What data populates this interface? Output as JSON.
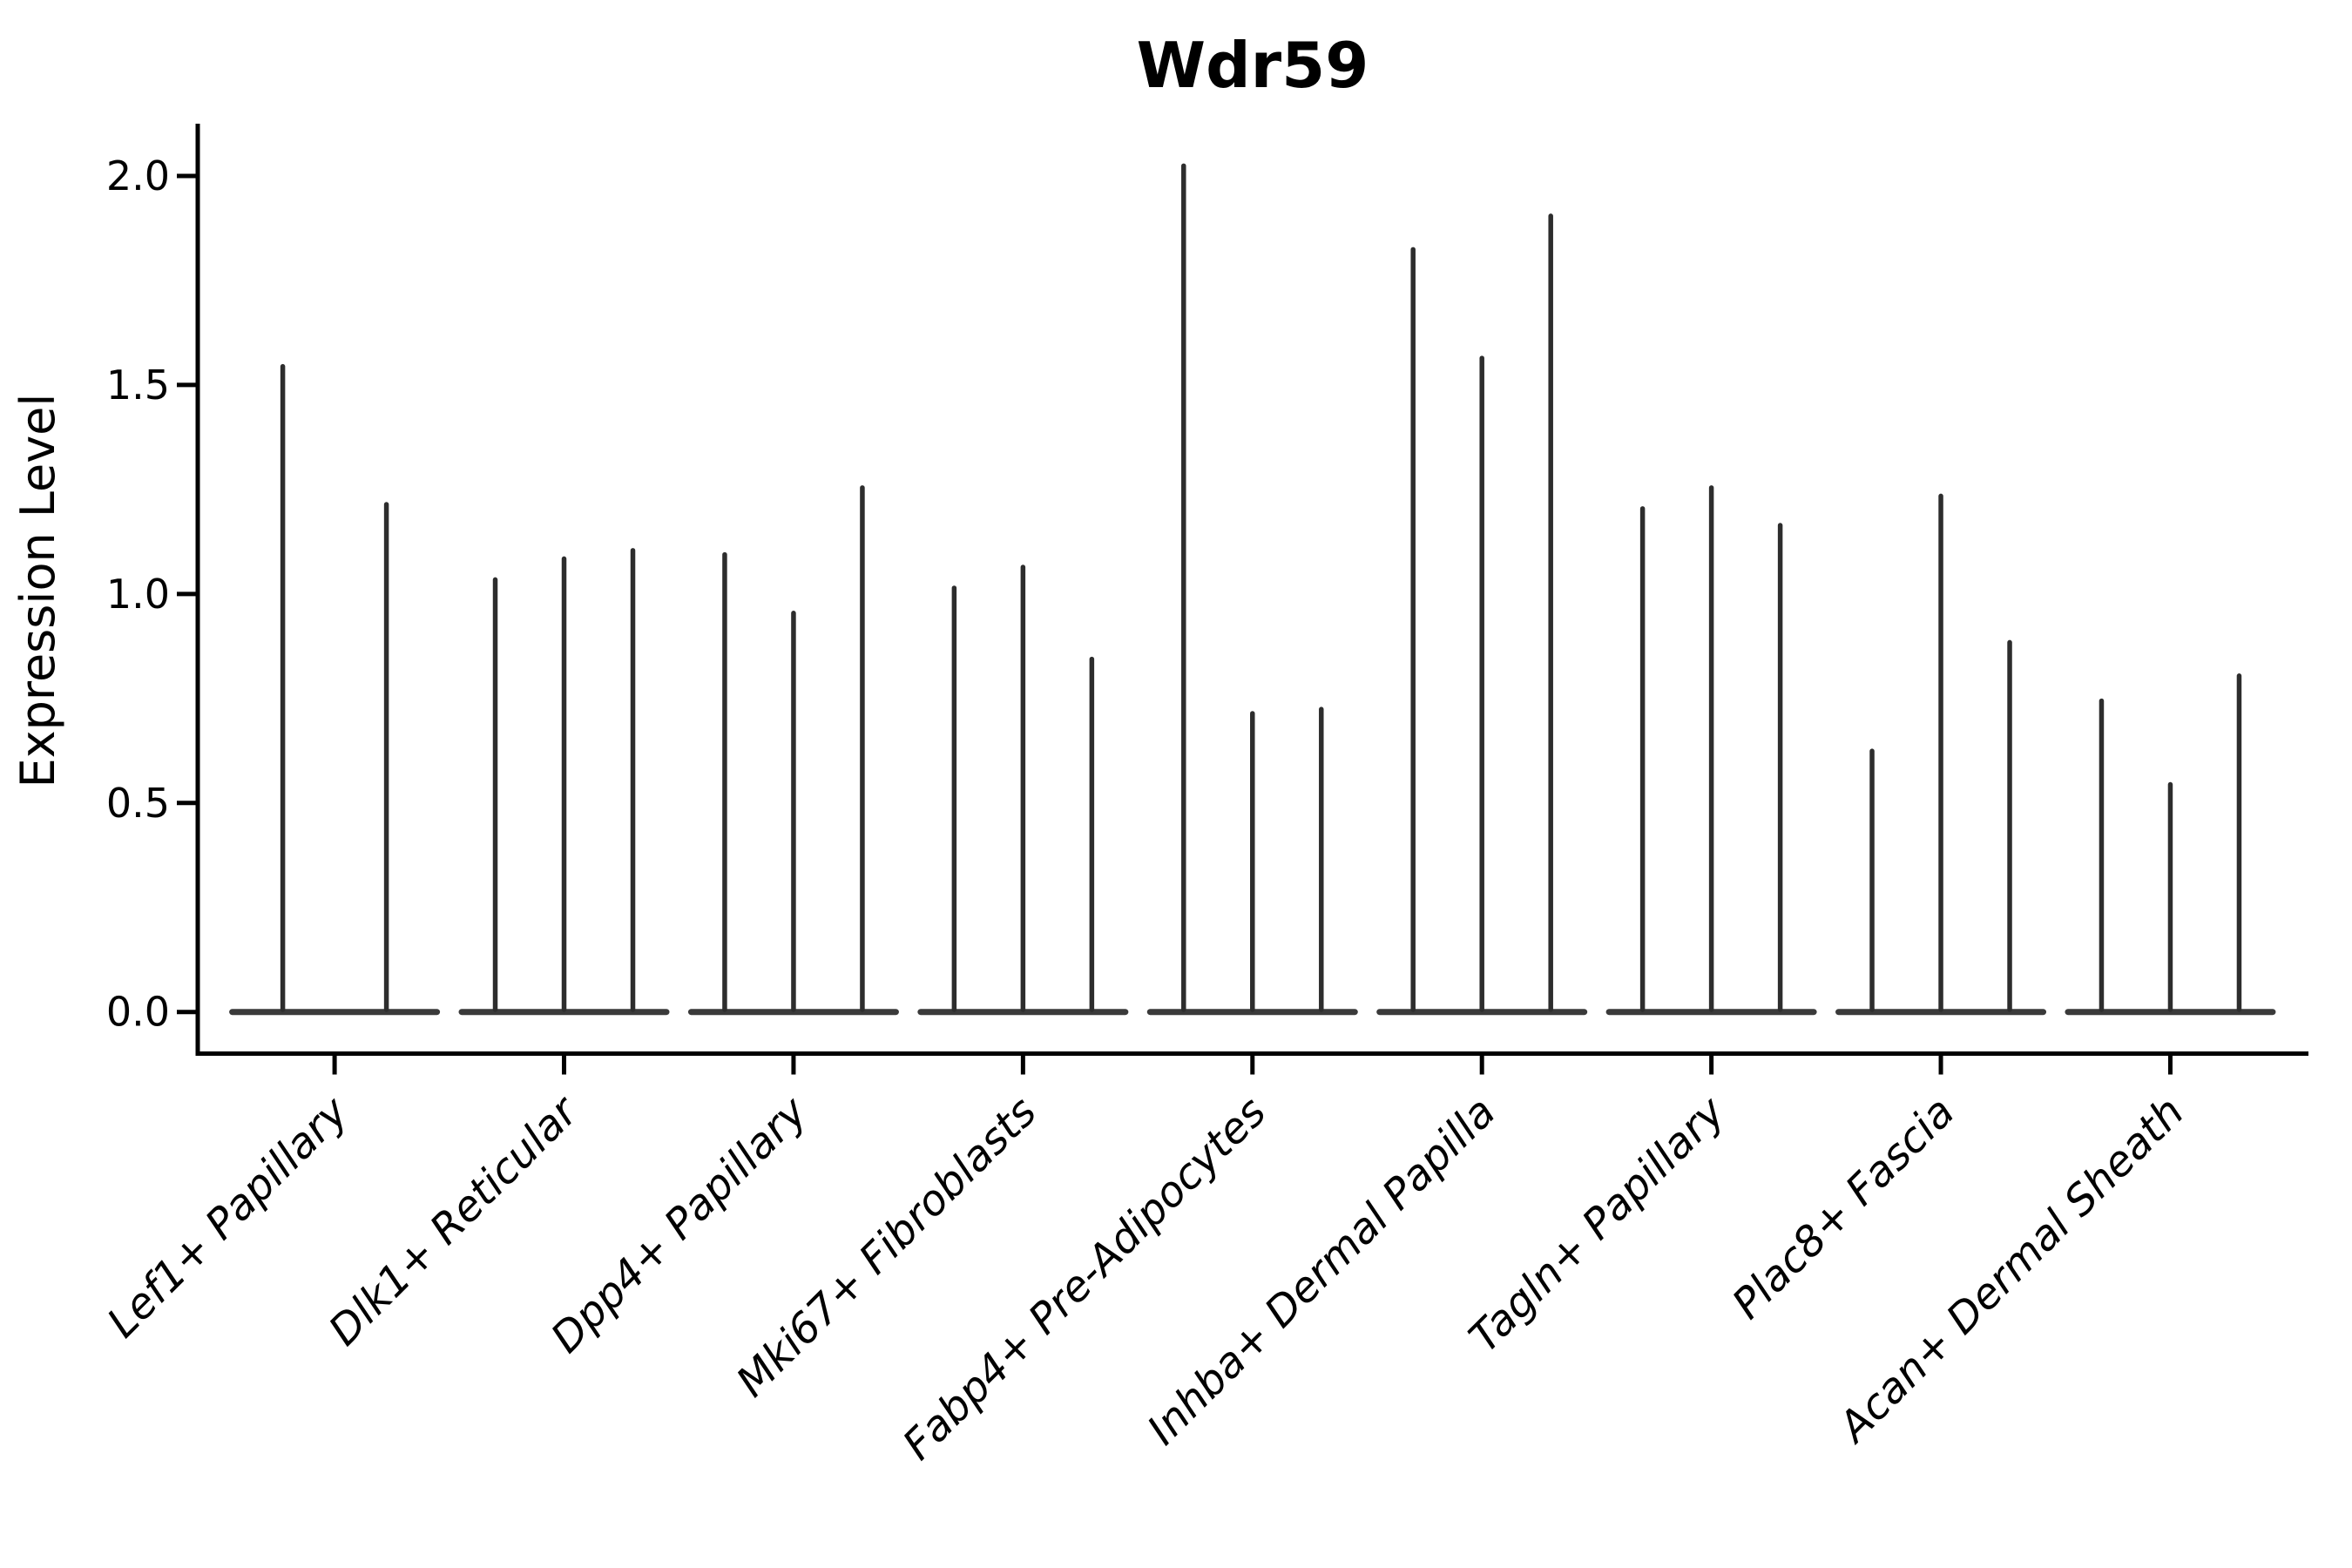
{
  "title": "Wdr59",
  "y_axis": {
    "label": "Expression Level",
    "tick_labels": [
      "0.0",
      "0.5",
      "1.0",
      "1.5",
      "2.0"
    ]
  },
  "chart_data": {
    "type": "violin",
    "title": "Wdr59",
    "xlabel": "",
    "ylabel": "Expression Level",
    "ylim": [
      -0.1,
      2.125
    ],
    "yticks": [
      0.0,
      0.5,
      1.0,
      1.5,
      2.0
    ],
    "grid": false,
    "legend": "none",
    "style": "sparse single-cell expression violins: each cluster has a wide flat density at 0 and thin vertical density spikes reaching the maximum expression of each sub-violin",
    "categories": [
      "Lef1+ Papillary",
      "Dlk1+ Reticular",
      "Dpp4+ Papillary",
      "Mki67+ Fibroblasts",
      "Fabp4+ Pre-Adipocytes",
      "Inhba+ Dermal Papilla",
      "Tagln+ Papillary",
      "Plac8+ Fascia",
      "Acan+ Dermal Sheath"
    ],
    "series": [
      {
        "category": "Lef1+ Papillary",
        "spike_max_expression": [
          1.55,
          1.22
        ]
      },
      {
        "category": "Dlk1+ Reticular",
        "spike_max_expression": [
          1.04,
          1.09,
          1.11
        ]
      },
      {
        "category": "Dpp4+ Papillary",
        "spike_max_expression": [
          1.1,
          0.96,
          1.26
        ]
      },
      {
        "category": "Mki67+ Fibroblasts",
        "spike_max_expression": [
          1.02,
          1.07,
          0.85
        ]
      },
      {
        "category": "Fabp4+ Pre-Adipocytes",
        "spike_max_expression": [
          2.03,
          0.72,
          0.73
        ]
      },
      {
        "category": "Inhba+ Dermal Papilla",
        "spike_max_expression": [
          1.83,
          1.57,
          1.91
        ]
      },
      {
        "category": "Tagln+ Papillary",
        "spike_max_expression": [
          1.21,
          1.26,
          1.17
        ]
      },
      {
        "category": "Plac8+ Fascia",
        "spike_max_expression": [
          0.63,
          1.24,
          0.89
        ]
      },
      {
        "category": "Acan+ Dermal Sheath",
        "spike_max_expression": [
          0.75,
          0.55,
          0.81
        ]
      }
    ]
  },
  "colors": {
    "background": "#ffffff",
    "axis": "#000000",
    "text": "#000000",
    "violin_spike": "#2d2d2d",
    "violin_base": "#3a3a3a"
  }
}
